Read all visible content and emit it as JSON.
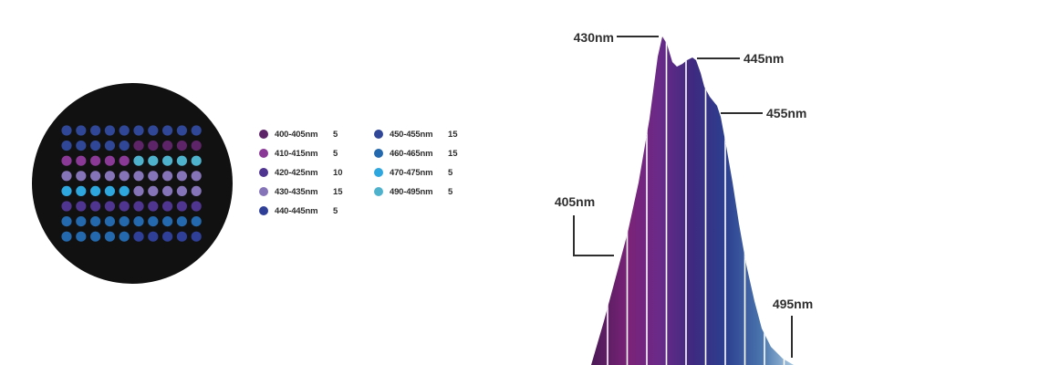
{
  "colors": {
    "background": "#ffffff",
    "panel": "#111111",
    "leader_line": "#2e2e2e"
  },
  "led_panel": {
    "grid": [
      [
        "450-455nm",
        "450-455nm",
        "450-455nm",
        "450-455nm",
        "450-455nm",
        "450-455nm",
        "450-455nm",
        "450-455nm",
        "450-455nm",
        "450-455nm"
      ],
      [
        "450-455nm",
        "450-455nm",
        "450-455nm",
        "450-455nm",
        "450-455nm",
        "400-405nm",
        "400-405nm",
        "400-405nm",
        "400-405nm",
        "400-405nm"
      ],
      [
        "410-415nm",
        "410-415nm",
        "410-415nm",
        "410-415nm",
        "410-415nm",
        "490-495nm",
        "490-495nm",
        "490-495nm",
        "490-495nm",
        "490-495nm"
      ],
      [
        "430-435nm",
        "430-435nm",
        "430-435nm",
        "430-435nm",
        "430-435nm",
        "430-435nm",
        "430-435nm",
        "430-435nm",
        "430-435nm",
        "430-435nm"
      ],
      [
        "470-475nm",
        "470-475nm",
        "470-475nm",
        "470-475nm",
        "470-475nm",
        "430-435nm",
        "430-435nm",
        "430-435nm",
        "430-435nm",
        "430-435nm"
      ],
      [
        "420-425nm",
        "420-425nm",
        "420-425nm",
        "420-425nm",
        "420-425nm",
        "420-425nm",
        "420-425nm",
        "420-425nm",
        "420-425nm",
        "420-425nm"
      ],
      [
        "460-465nm",
        "460-465nm",
        "460-465nm",
        "460-465nm",
        "460-465nm",
        "460-465nm",
        "460-465nm",
        "460-465nm",
        "460-465nm",
        "460-465nm"
      ],
      [
        "460-465nm",
        "460-465nm",
        "460-465nm",
        "460-465nm",
        "460-465nm",
        "440-445nm",
        "440-445nm",
        "440-445nm",
        "440-445nm",
        "440-445nm"
      ]
    ]
  },
  "legend": [
    {
      "range": "400-405nm",
      "count": "5",
      "color": "#5e2468"
    },
    {
      "range": "410-415nm",
      "count": "5",
      "color": "#8a3a96"
    },
    {
      "range": "420-425nm",
      "count": "10",
      "color": "#4f3590"
    },
    {
      "range": "430-435nm",
      "count": "15",
      "color": "#8674b8"
    },
    {
      "range": "440-445nm",
      "count": "5",
      "color": "#2f3f98"
    },
    {
      "range": "450-455nm",
      "count": "15",
      "color": "#2f4796"
    },
    {
      "range": "460-465nm",
      "count": "15",
      "color": "#2469ad"
    },
    {
      "range": "470-475nm",
      "count": "5",
      "color": "#2ea6de"
    },
    {
      "range": "490-495nm",
      "count": "5",
      "color": "#4fb2cc"
    }
  ],
  "spectrum": {
    "peak_labels": {
      "p430": "430nm",
      "p445": "445nm",
      "p455": "455nm",
      "p405": "405nm",
      "p495": "495nm"
    },
    "gradient_colors": [
      "#4d1a58",
      "#7a2378",
      "#6a2a88",
      "#3d2a80",
      "#2c3f8f",
      "#4a75ad",
      "#a9c9e0"
    ]
  }
}
